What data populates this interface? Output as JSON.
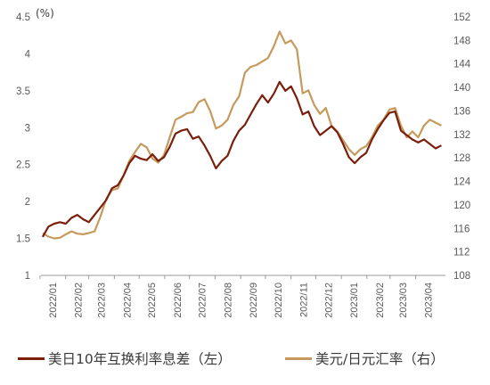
{
  "chart_data": {
    "type": "line",
    "unit_label": "(%)",
    "x_ticks": [
      "2022/01",
      "2022/02",
      "2022/03",
      "2022/04",
      "2022/05",
      "2022/06",
      "2022/07",
      "2022/08",
      "2022/09",
      "2022/10",
      "2022/11",
      "2022/12",
      "2023/01",
      "2023/02",
      "2023/03",
      "2023/04"
    ],
    "y_left": {
      "ylim": [
        1,
        4.5
      ],
      "ticks": [
        "1",
        "1.5",
        "2",
        "2.5",
        "3",
        "3.5",
        "4",
        "4.5"
      ]
    },
    "y_right": {
      "ylim": [
        108,
        152
      ],
      "ticks": [
        "108",
        "112",
        "116",
        "120",
        "124",
        "128",
        "132",
        "136",
        "140",
        "144",
        "148",
        "152"
      ]
    },
    "grid": false,
    "legend_position": "bottom",
    "series": [
      {
        "name": "美日10年互换利率息差（左）",
        "axis": "left",
        "color": "#7b1f0d",
        "points": [
          [
            "2022-01-03",
            1.52
          ],
          [
            "2022-01-10",
            1.66
          ],
          [
            "2022-01-17",
            1.7
          ],
          [
            "2022-01-24",
            1.72
          ],
          [
            "2022-01-31",
            1.7
          ],
          [
            "2022-02-07",
            1.78
          ],
          [
            "2022-02-14",
            1.82
          ],
          [
            "2022-02-21",
            1.76
          ],
          [
            "2022-02-28",
            1.72
          ],
          [
            "2022-03-07",
            1.82
          ],
          [
            "2022-03-14",
            1.92
          ],
          [
            "2022-03-21",
            2.02
          ],
          [
            "2022-03-28",
            2.18
          ],
          [
            "2022-04-04",
            2.22
          ],
          [
            "2022-04-11",
            2.35
          ],
          [
            "2022-04-18",
            2.52
          ],
          [
            "2022-04-25",
            2.62
          ],
          [
            "2022-05-02",
            2.58
          ],
          [
            "2022-05-09",
            2.56
          ],
          [
            "2022-05-16",
            2.64
          ],
          [
            "2022-05-23",
            2.55
          ],
          [
            "2022-05-30",
            2.6
          ],
          [
            "2022-06-06",
            2.74
          ],
          [
            "2022-06-13",
            2.92
          ],
          [
            "2022-06-20",
            2.96
          ],
          [
            "2022-06-27",
            2.98
          ],
          [
            "2022-07-04",
            2.85
          ],
          [
            "2022-07-11",
            2.88
          ],
          [
            "2022-07-18",
            2.76
          ],
          [
            "2022-07-25",
            2.62
          ],
          [
            "2022-08-01",
            2.45
          ],
          [
            "2022-08-08",
            2.55
          ],
          [
            "2022-08-15",
            2.62
          ],
          [
            "2022-08-22",
            2.82
          ],
          [
            "2022-08-29",
            2.96
          ],
          [
            "2022-09-05",
            3.04
          ],
          [
            "2022-09-12",
            3.18
          ],
          [
            "2022-09-19",
            3.32
          ],
          [
            "2022-09-26",
            3.44
          ],
          [
            "2022-10-03",
            3.34
          ],
          [
            "2022-10-10",
            3.46
          ],
          [
            "2022-10-17",
            3.62
          ],
          [
            "2022-10-24",
            3.5
          ],
          [
            "2022-10-31",
            3.56
          ],
          [
            "2022-11-07",
            3.4
          ],
          [
            "2022-11-14",
            3.18
          ],
          [
            "2022-11-21",
            3.22
          ],
          [
            "2022-11-28",
            3.02
          ],
          [
            "2022-12-05",
            2.9
          ],
          [
            "2022-12-12",
            2.96
          ],
          [
            "2022-12-19",
            3.02
          ],
          [
            "2022-12-26",
            2.94
          ],
          [
            "2023-01-02",
            2.78
          ],
          [
            "2023-01-09",
            2.6
          ],
          [
            "2023-01-16",
            2.52
          ],
          [
            "2023-01-23",
            2.6
          ],
          [
            "2023-01-30",
            2.66
          ],
          [
            "2023-02-06",
            2.84
          ],
          [
            "2023-02-13",
            2.98
          ],
          [
            "2023-02-20",
            3.1
          ],
          [
            "2023-02-27",
            3.2
          ],
          [
            "2023-03-06",
            3.22
          ],
          [
            "2023-03-13",
            2.96
          ],
          [
            "2023-03-20",
            2.9
          ],
          [
            "2023-03-27",
            2.84
          ],
          [
            "2023-04-03",
            2.8
          ],
          [
            "2023-04-10",
            2.84
          ],
          [
            "2023-04-17",
            2.78
          ],
          [
            "2023-04-24",
            2.72
          ],
          [
            "2023-05-01",
            2.76
          ]
        ]
      },
      {
        "name": "美元/日元汇率（右）",
        "axis": "right",
        "color": "#c69a5c",
        "points": [
          [
            "2022-01-03",
            115.2
          ],
          [
            "2022-01-10",
            114.6
          ],
          [
            "2022-01-17",
            114.3
          ],
          [
            "2022-01-24",
            114.4
          ],
          [
            "2022-01-31",
            115.0
          ],
          [
            "2022-02-07",
            115.5
          ],
          [
            "2022-02-14",
            115.1
          ],
          [
            "2022-02-21",
            115.0
          ],
          [
            "2022-02-28",
            115.2
          ],
          [
            "2022-03-07",
            115.5
          ],
          [
            "2022-03-14",
            118.0
          ],
          [
            "2022-03-21",
            121.0
          ],
          [
            "2022-03-28",
            122.5
          ],
          [
            "2022-04-04",
            122.8
          ],
          [
            "2022-04-11",
            125.0
          ],
          [
            "2022-04-18",
            127.5
          ],
          [
            "2022-04-25",
            129.0
          ],
          [
            "2022-05-02",
            130.4
          ],
          [
            "2022-05-09",
            129.8
          ],
          [
            "2022-05-16",
            127.9
          ],
          [
            "2022-05-23",
            127.2
          ],
          [
            "2022-05-30",
            128.5
          ],
          [
            "2022-06-06",
            131.5
          ],
          [
            "2022-06-13",
            134.5
          ],
          [
            "2022-06-20",
            135.0
          ],
          [
            "2022-06-27",
            135.6
          ],
          [
            "2022-07-04",
            135.8
          ],
          [
            "2022-07-11",
            137.5
          ],
          [
            "2022-07-18",
            138.0
          ],
          [
            "2022-07-25",
            136.0
          ],
          [
            "2022-08-01",
            133.0
          ],
          [
            "2022-08-08",
            133.5
          ],
          [
            "2022-08-15",
            134.5
          ],
          [
            "2022-08-22",
            137.0
          ],
          [
            "2022-08-29",
            138.5
          ],
          [
            "2022-09-05",
            142.5
          ],
          [
            "2022-09-12",
            143.5
          ],
          [
            "2022-09-19",
            143.8
          ],
          [
            "2022-09-26",
            144.4
          ],
          [
            "2022-10-03",
            145.0
          ],
          [
            "2022-10-10",
            147.0
          ],
          [
            "2022-10-17",
            149.5
          ],
          [
            "2022-10-24",
            147.5
          ],
          [
            "2022-10-31",
            148.0
          ],
          [
            "2022-11-07",
            146.5
          ],
          [
            "2022-11-14",
            139.0
          ],
          [
            "2022-11-21",
            139.5
          ],
          [
            "2022-11-28",
            137.0
          ],
          [
            "2022-12-05",
            135.5
          ],
          [
            "2022-12-12",
            136.5
          ],
          [
            "2022-12-19",
            133.5
          ],
          [
            "2022-12-26",
            132.5
          ],
          [
            "2023-01-02",
            131.0
          ],
          [
            "2023-01-09",
            129.5
          ],
          [
            "2023-01-16",
            128.5
          ],
          [
            "2023-01-23",
            129.5
          ],
          [
            "2023-01-30",
            130.0
          ],
          [
            "2023-02-06",
            131.5
          ],
          [
            "2023-02-13",
            133.5
          ],
          [
            "2023-02-20",
            134.5
          ],
          [
            "2023-02-27",
            136.2
          ],
          [
            "2023-03-06",
            136.5
          ],
          [
            "2023-03-13",
            133.5
          ],
          [
            "2023-03-20",
            131.5
          ],
          [
            "2023-03-27",
            132.5
          ],
          [
            "2023-04-03",
            131.5
          ],
          [
            "2023-04-10",
            133.5
          ],
          [
            "2023-04-17",
            134.5
          ],
          [
            "2023-04-24",
            134.0
          ],
          [
            "2023-05-01",
            133.5
          ]
        ]
      }
    ]
  }
}
